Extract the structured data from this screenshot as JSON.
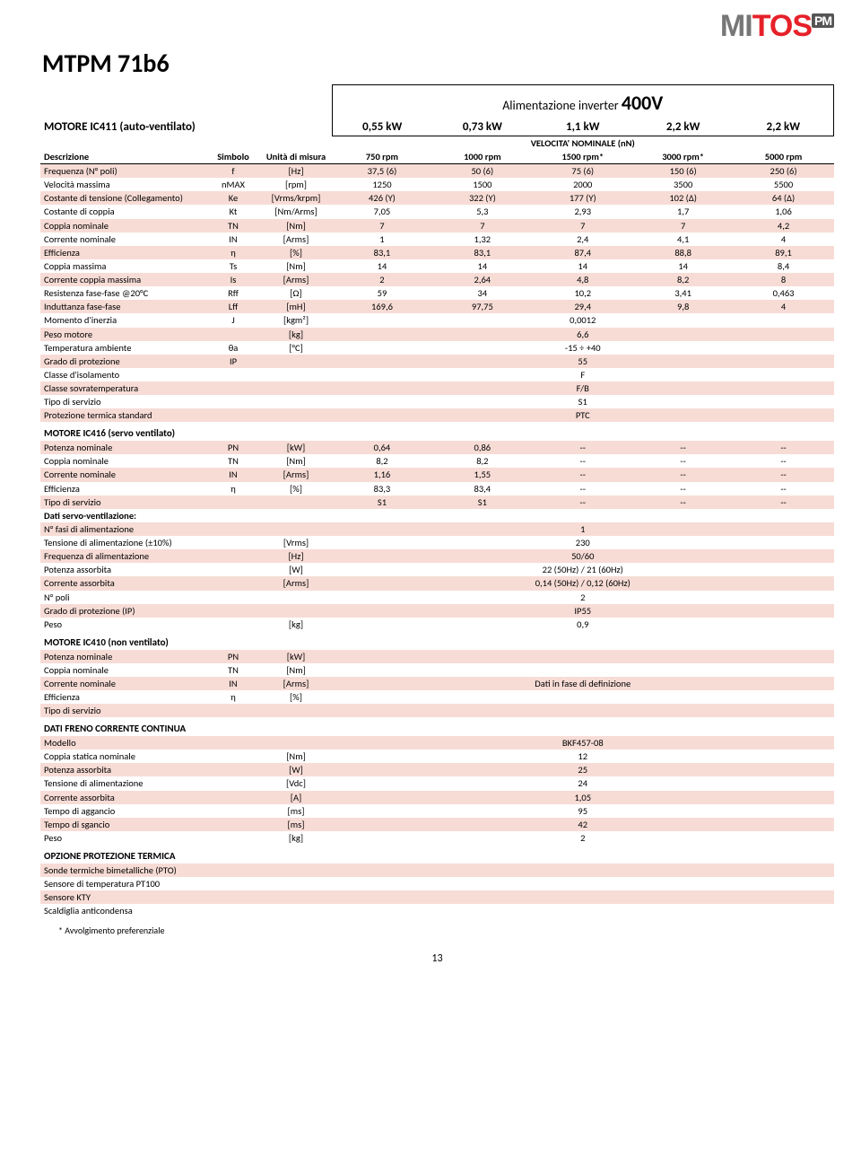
{
  "logo": {
    "m": "M",
    "i": "I",
    "t": "T",
    "o": "O",
    "s": "S",
    "pm": "PM"
  },
  "title": "MTPM 71b6",
  "inverter_label": "Alimentazione inverter ",
  "inverter_value": "400V",
  "motor411": "MOTORE IC411 (auto-ventilato)",
  "power_cols": [
    "0,55 kW",
    "0,73 kW",
    "1,1 kW",
    "2,2 kW",
    "2,2 kW"
  ],
  "speed_note": "VELOCITA' NOMINALE (nN)",
  "hdr": {
    "desc": "Descrizione",
    "sym": "Simbolo",
    "unit": "Unità di misura",
    "cols": [
      "750 rpm",
      "1000 rpm",
      "1500 rpm*",
      "3000 rpm*",
      "5000 rpm"
    ]
  },
  "block1": [
    {
      "d": "Frequenza (N° poli)",
      "s": "f",
      "u": "[Hz]",
      "v": [
        "37,5 (6)",
        "50 (6)",
        "75 (6)",
        "150 (6)",
        "250 (6)"
      ],
      "stripe": true
    },
    {
      "d": "Velocità massima",
      "s": "nMAX",
      "u": "[rpm]",
      "v": [
        "1250",
        "1500",
        "2000",
        "3500",
        "5500"
      ]
    },
    {
      "d": "Costante di tensione (Collegamento)",
      "s": "Ke",
      "u": "[Vrms/krpm]",
      "v": [
        "426 (Y)",
        "322 (Y)",
        "177 (Y)",
        "102 (Δ)",
        "64 (Δ)"
      ],
      "stripe": true
    },
    {
      "d": "Costante di coppia",
      "s": "Kt",
      "u": "[Nm/Arms]",
      "v": [
        "7,05",
        "5,3",
        "2,93",
        "1,7",
        "1,06"
      ]
    },
    {
      "d": "Coppia nominale",
      "s": "TN",
      "u": "[Nm]",
      "v": [
        "7",
        "7",
        "7",
        "7",
        "4,2"
      ],
      "stripe": true
    },
    {
      "d": "Corrente nominale",
      "s": "IN",
      "u": "[Arms]",
      "v": [
        "1",
        "1,32",
        "2,4",
        "4,1",
        "4"
      ]
    },
    {
      "d": "Efficienza",
      "s": "η",
      "u": "[%]",
      "v": [
        "83,1",
        "83,1",
        "87,4",
        "88,8",
        "89,1"
      ],
      "stripe": true
    },
    {
      "d": "Coppia massima",
      "s": "Ts",
      "u": "[Nm]",
      "v": [
        "14",
        "14",
        "14",
        "14",
        "8,4"
      ]
    },
    {
      "d": "Corrente coppia massima",
      "s": "Is",
      "u": "[Arms]",
      "v": [
        "2",
        "2,64",
        "4,8",
        "8,2",
        "8"
      ],
      "stripe": true
    },
    {
      "d": "Resistenza fase-fase @20°C",
      "s": "Rff",
      "u": "[Ω]",
      "v": [
        "59",
        "34",
        "10,2",
        "3,41",
        "0,463"
      ]
    },
    {
      "d": "Induttanza fase-fase",
      "s": "Lff",
      "u": "[mH]",
      "v": [
        "169,6",
        "97,75",
        "29,4",
        "9,8",
        "4"
      ],
      "stripe": true
    },
    {
      "d": "Momento d'inerzia",
      "s": "J",
      "u": "[kgm²]",
      "span": "0,0012"
    },
    {
      "d": "Peso motore",
      "s": "",
      "u": "[kg]",
      "span": "6,6",
      "stripe": true
    },
    {
      "d": "Temperatura ambiente",
      "s": "θa",
      "u": "[°C]",
      "span": "-15 ÷ +40"
    },
    {
      "d": "Grado di protezione",
      "s": "IP",
      "u": "",
      "span": "55",
      "stripe": true
    },
    {
      "d": "Classe d'isolamento",
      "s": "",
      "u": "",
      "span": "F"
    },
    {
      "d": "Classe sovratemperatura",
      "s": "",
      "u": "",
      "span": "F/B",
      "stripe": true
    },
    {
      "d": "Tipo di servizio",
      "s": "",
      "u": "",
      "span": "S1"
    },
    {
      "d": "Protezione termica standard",
      "s": "",
      "u": "",
      "span": "PTC",
      "stripe": true
    }
  ],
  "motor416": "MOTORE IC416 (servo ventilato)",
  "block2": [
    {
      "d": "Potenza nominale",
      "s": "PN",
      "u": "[kW]",
      "v": [
        "0,64",
        "0,86",
        "--",
        "--",
        "--"
      ],
      "stripe": true
    },
    {
      "d": "Coppia nominale",
      "s": "TN",
      "u": "[Nm]",
      "v": [
        "8,2",
        "8,2",
        "--",
        "--",
        "--"
      ]
    },
    {
      "d": "Corrente nominale",
      "s": "IN",
      "u": "[Arms]",
      "v": [
        "1,16",
        "1,55",
        "--",
        "--",
        "--"
      ],
      "stripe": true
    },
    {
      "d": "Efficienza",
      "s": "η",
      "u": "[%]",
      "v": [
        "83,3",
        "83,4",
        "--",
        "--",
        "--"
      ]
    },
    {
      "d": "Tipo di servizio",
      "s": "",
      "u": "",
      "v": [
        "S1",
        "S1",
        "--",
        "--",
        "--"
      ],
      "stripe": true
    },
    {
      "d": "Dati servo-ventilazione:",
      "s": "",
      "u": "",
      "bold": true
    },
    {
      "d": "N° fasi di alimentazione",
      "s": "",
      "u": "",
      "span": "1",
      "stripe": true
    },
    {
      "d": "Tensione di alimentazione (±10%)",
      "s": "",
      "u": "[Vrms]",
      "span": "230"
    },
    {
      "d": "Frequenza di alimentazione",
      "s": "",
      "u": "[Hz]",
      "span": "50/60",
      "stripe": true
    },
    {
      "d": "Potenza assorbita",
      "s": "",
      "u": "[W]",
      "span": "22 (50Hz) / 21 (60Hz)"
    },
    {
      "d": "Corrente assorbita",
      "s": "",
      "u": "[Arms]",
      "span": "0,14 (50Hz) / 0,12 (60Hz)",
      "stripe": true
    },
    {
      "d": "N° poli",
      "s": "",
      "u": "",
      "span": "2"
    },
    {
      "d": "Grado di protezione (IP)",
      "s": "",
      "u": "",
      "span": "IP55",
      "stripe": true
    },
    {
      "d": "Peso",
      "s": "",
      "u": "[kg]",
      "span": "0,9"
    }
  ],
  "motor410": "MOTORE IC410 (non ventilato)",
  "block3": [
    {
      "d": "Potenza nominale",
      "s": "PN",
      "u": "[kW]",
      "span": "",
      "stripe": true
    },
    {
      "d": "Coppia nominale",
      "s": "TN",
      "u": "[Nm]",
      "span": ""
    },
    {
      "d": "Corrente nominale",
      "s": "IN",
      "u": "[Arms]",
      "span": "Dati in fase di definizione",
      "stripe": true
    },
    {
      "d": "Efficienza",
      "s": "η",
      "u": "[%]",
      "span": ""
    },
    {
      "d": "Tipo di servizio",
      "s": "",
      "u": "",
      "span": "",
      "stripe": true
    }
  ],
  "brake_head": "DATI FRENO CORRENTE CONTINUA",
  "block4": [
    {
      "d": "Modello",
      "s": "",
      "u": "",
      "span": "BKF457-08",
      "stripe": true
    },
    {
      "d": "Coppia statica nominale",
      "s": "",
      "u": "[Nm]",
      "span": "12"
    },
    {
      "d": "Potenza assorbita",
      "s": "",
      "u": "[W]",
      "span": "25",
      "stripe": true
    },
    {
      "d": "Tensione di alimentazione",
      "s": "",
      "u": "[Vdc]",
      "span": "24"
    },
    {
      "d": "Corrente assorbita",
      "s": "",
      "u": "[A]",
      "span": "1,05",
      "stripe": true
    },
    {
      "d": "Tempo di aggancio",
      "s": "",
      "u": "[ms]",
      "span": "95"
    },
    {
      "d": "Tempo di sgancio",
      "s": "",
      "u": "[ms]",
      "span": "42",
      "stripe": true
    },
    {
      "d": "Peso",
      "s": "",
      "u": "[kg]",
      "span": "2"
    }
  ],
  "thermal_head": "OPZIONE PROTEZIONE TERMICA",
  "block5": [
    {
      "d": "Sonde termiche bimetalliche (PTO)",
      "stripe": true
    },
    {
      "d": "Sensore di temperatura PT100"
    },
    {
      "d": "Sensore KTY",
      "stripe": true
    },
    {
      "d": "Scaldiglia anticondensa"
    }
  ],
  "footnote": "*  Avvolgimento preferenziale",
  "page": "13"
}
